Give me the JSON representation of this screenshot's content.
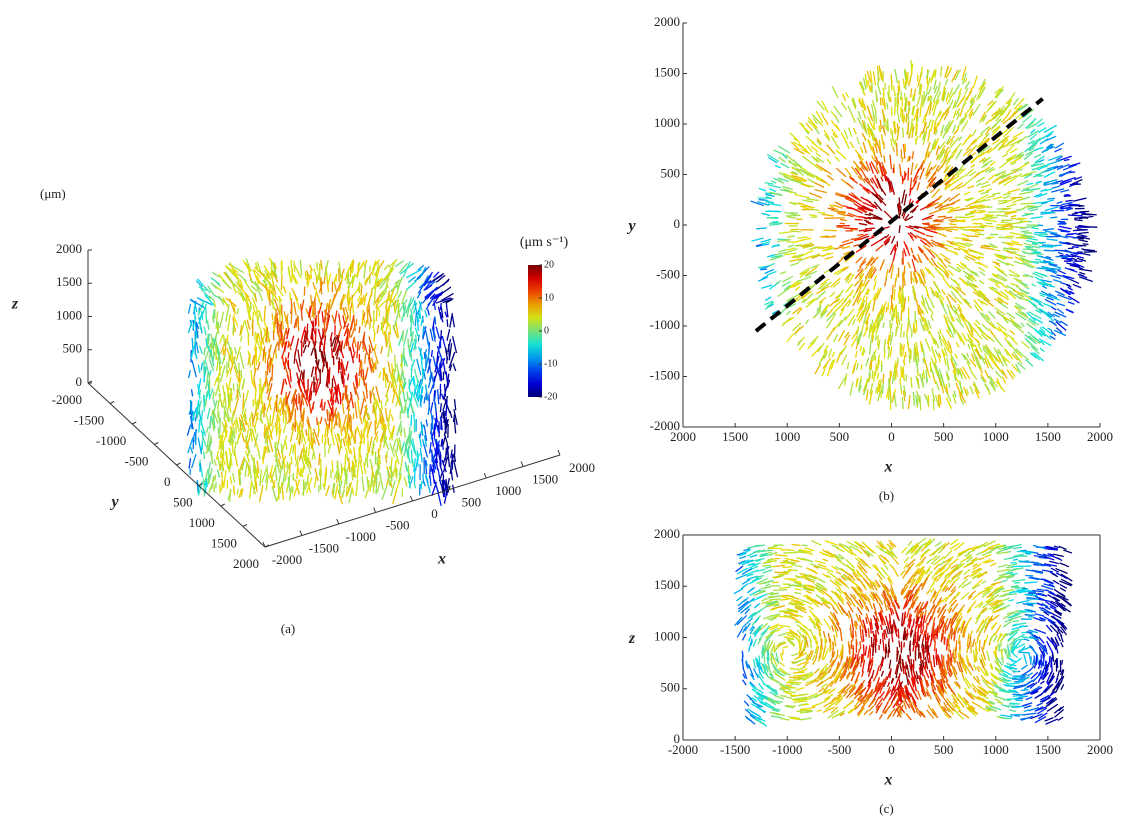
{
  "chart_data": [
    {
      "type": "scatter3d",
      "unit_label": "(μm)",
      "xlabel": "x",
      "ylabel": "y",
      "zlabel": "z",
      "xlim": [
        -2000,
        2000
      ],
      "ylim": [
        -2000,
        2000
      ],
      "zlim": [
        0,
        2000
      ],
      "xticks": [
        -2000,
        -1500,
        -1000,
        -500,
        0,
        500,
        1000,
        1500,
        2000
      ],
      "yticks": [
        -2000,
        -1500,
        -1000,
        -500,
        0,
        500,
        1000,
        1500,
        2000
      ],
      "zticks": [
        0,
        500,
        1000,
        1500,
        2000
      ],
      "caption": "(a)",
      "colorbar": {
        "label": "(μm s⁻¹)",
        "lim": [
          -20,
          20
        ],
        "ticks": [
          -20,
          -10,
          0,
          10,
          20
        ]
      }
    },
    {
      "type": "scatter",
      "xlabel": "x",
      "ylabel": "y",
      "xlim": [
        -2000,
        2000
      ],
      "ylim": [
        -2000,
        2000
      ],
      "xticks": [
        {
          "value": -2000,
          "label": "2000"
        },
        {
          "value": -1500,
          "label": "1500"
        },
        {
          "value": -1000,
          "label": "1000"
        },
        {
          "value": -500,
          "label": "500"
        },
        0,
        500,
        1000,
        1500,
        2000
      ],
      "yticks": [
        -2000,
        -1500,
        -1000,
        -500,
        0,
        500,
        1000,
        1500,
        2000
      ],
      "caption": "(b)",
      "dashed_line": {
        "x": [
          -1300,
          1450
        ],
        "y": [
          -1050,
          1250
        ]
      }
    },
    {
      "type": "scatter",
      "xlabel": "x",
      "ylabel": "z",
      "xlim": [
        -2000,
        2000
      ],
      "ylim": [
        0,
        2000
      ],
      "xticks": [
        -2000,
        -1500,
        -1000,
        -500,
        0,
        500,
        1000,
        1500,
        2000
      ],
      "yticks": [
        0,
        500,
        1000,
        1500,
        2000
      ],
      "caption": "(c)",
      "box": true
    }
  ]
}
